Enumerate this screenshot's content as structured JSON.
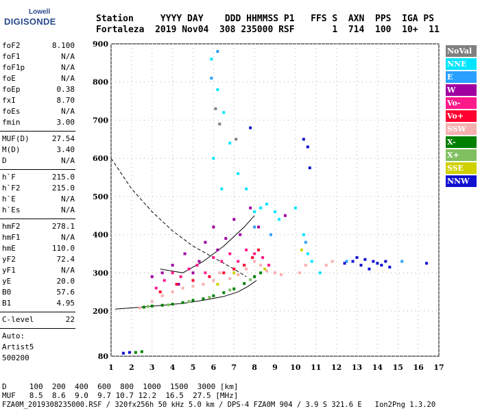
{
  "logo": {
    "top": "Lowell",
    "main": "DIGISONDE"
  },
  "header": {
    "line1": "Station     YYYY DAY    DDD HHMMSS P1   FFS S  AXN  PPS  IGA PS",
    "line2": "Fortaleza  2019 Nov04  308 235000 RSF       1  714  100  10+  11"
  },
  "params": [
    {
      "label": "foF2",
      "value": "8.100"
    },
    {
      "label": "foF1",
      "value": "N/A"
    },
    {
      "label": "foF1p",
      "value": "N/A"
    },
    {
      "label": "foE",
      "value": "N/A"
    },
    {
      "label": "foEp",
      "value": "0.38"
    },
    {
      "label": "fxI",
      "value": "8.70"
    },
    {
      "label": "foEs",
      "value": "N/A"
    },
    {
      "label": "fmin",
      "value": "3.00"
    },
    {
      "label": "MUF(D)",
      "value": "27.54"
    },
    {
      "label": "M(D)",
      "value": "3.40"
    },
    {
      "label": "D",
      "value": "N/A"
    },
    {
      "label": "h`F",
      "value": "215.0"
    },
    {
      "label": "h`F2",
      "value": "215.0"
    },
    {
      "label": "h`E",
      "value": "N/A"
    },
    {
      "label": "h`Es",
      "value": "N/A"
    },
    {
      "label": "hmF2",
      "value": "278.1"
    },
    {
      "label": "hmF1",
      "value": "N/A"
    },
    {
      "label": "hmE",
      "value": "110.0"
    },
    {
      "label": "yF2",
      "value": "72.4"
    },
    {
      "label": "yF1",
      "value": "N/A"
    },
    {
      "label": "yE",
      "value": "20.0"
    },
    {
      "label": "B0",
      "value": "57.6"
    },
    {
      "label": "B1",
      "value": "4.95"
    },
    {
      "label": "C-level",
      "value": "22"
    }
  ],
  "autoscale": {
    "line1": "Auto:",
    "line2": "Artist5",
    "line3": "500200"
  },
  "legend": [
    {
      "label": "NoVal",
      "color": "#808080"
    },
    {
      "label": "NNE",
      "color": "#00e5ff"
    },
    {
      "label": "E",
      "color": "#2aa0ff"
    },
    {
      "label": "W",
      "color": "#a000a0"
    },
    {
      "label": "Vo-",
      "color": "#ff1a8c"
    },
    {
      "label": "Vo+",
      "color": "#ff0030"
    },
    {
      "label": "SSW",
      "color": "#f7b0b0"
    },
    {
      "label": "X-",
      "color": "#008000"
    },
    {
      "label": "X+",
      "color": "#80c060"
    },
    {
      "label": "SSE",
      "color": "#d0d000"
    },
    {
      "label": "NNW",
      "color": "#1010d0"
    }
  ],
  "footer": {
    "d_row": "D     100  200  400  600  800  1000  1500  3000 [km]",
    "muf_row": "MUF   8.5  8.6  9.0  9.7 10.7 12.2  16.5  27.5 [MHz]",
    "file_row": "FZA0M_2019308235000.RSF / 320fx256h 50 kHz 5.0 km / DPS-4 FZA0M 904 / 3.9 S 321.6 E   Ion2Png 1.3.20"
  },
  "chart_data": {
    "type": "scatter",
    "xlim": [
      1,
      17
    ],
    "ylim": [
      80,
      900
    ],
    "xticks": [
      1,
      2,
      3,
      4,
      5,
      6,
      7,
      8,
      9,
      10,
      11,
      12,
      13,
      14,
      15,
      16,
      17
    ],
    "yticks": [
      80,
      200,
      300,
      400,
      500,
      600,
      700,
      800,
      900
    ],
    "series": [
      {
        "name": "SSW",
        "color": "#f7b0b0",
        "points": [
          [
            2.4,
            208
          ],
          [
            3,
            225
          ],
          [
            3.5,
            240
          ],
          [
            4,
            250
          ],
          [
            4.5,
            260
          ],
          [
            5,
            265
          ],
          [
            5.5,
            270
          ],
          [
            6,
            280
          ],
          [
            6.3,
            300
          ],
          [
            6.8,
            285
          ],
          [
            7.2,
            295
          ],
          [
            7.6,
            310
          ],
          [
            8,
            330
          ],
          [
            8.3,
            320
          ],
          [
            8.6,
            305
          ],
          [
            9,
            300
          ],
          [
            9.3,
            295
          ],
          [
            10.2,
            300
          ],
          [
            10.5,
            320
          ],
          [
            11.5,
            320
          ],
          [
            11.8,
            330
          ]
        ]
      },
      {
        "name": "W",
        "color": "#a000a0",
        "points": [
          [
            3,
            290
          ],
          [
            3.5,
            300
          ],
          [
            4,
            320
          ],
          [
            4.3,
            270
          ],
          [
            4.6,
            350
          ],
          [
            5,
            300
          ],
          [
            5.3,
            330
          ],
          [
            5.6,
            380
          ],
          [
            6,
            420
          ],
          [
            6.2,
            360
          ],
          [
            6.6,
            390
          ],
          [
            7,
            440
          ],
          [
            7.3,
            400
          ],
          [
            7.8,
            470
          ],
          [
            8.2,
            420
          ],
          [
            9.5,
            450
          ]
        ]
      },
      {
        "name": "Vo-",
        "color": "#ff1a8c",
        "points": [
          [
            3.2,
            260
          ],
          [
            3.6,
            280
          ],
          [
            4,
            300
          ],
          [
            4.4,
            290
          ],
          [
            4.8,
            310
          ],
          [
            5.2,
            320
          ],
          [
            5.6,
            300
          ],
          [
            6,
            340
          ],
          [
            6.4,
            330
          ],
          [
            6.8,
            350
          ],
          [
            7.2,
            330
          ],
          [
            7.6,
            360
          ],
          [
            8,
            350
          ],
          [
            8.4,
            340
          ],
          [
            8.7,
            320
          ]
        ]
      },
      {
        "name": "Vo+",
        "color": "#ff0030",
        "points": [
          [
            3.4,
            250
          ],
          [
            4.2,
            270
          ],
          [
            5,
            280
          ],
          [
            5.8,
            290
          ],
          [
            6.5,
            300
          ],
          [
            7,
            310
          ],
          [
            7.5,
            320
          ],
          [
            7.9,
            340
          ],
          [
            8.2,
            360
          ]
        ]
      },
      {
        "name": "NNE",
        "color": "#00e5ff",
        "points": [
          [
            5.9,
            860
          ],
          [
            6.2,
            780
          ],
          [
            6.5,
            720
          ],
          [
            6.8,
            640
          ],
          [
            7.2,
            560
          ],
          [
            7.6,
            520
          ],
          [
            8,
            460
          ],
          [
            8.3,
            470
          ],
          [
            8.6,
            480
          ],
          [
            9,
            460
          ],
          [
            9.2,
            440
          ],
          [
            10,
            470
          ],
          [
            10.4,
            400
          ],
          [
            10.6,
            350
          ],
          [
            10.8,
            330
          ],
          [
            11.2,
            300
          ],
          [
            6,
            600
          ],
          [
            6.4,
            520
          ]
        ]
      },
      {
        "name": "E",
        "color": "#2aa0ff",
        "points": [
          [
            5.9,
            810
          ],
          [
            6.2,
            880
          ],
          [
            8,
            420
          ],
          [
            8.8,
            400
          ],
          [
            10.5,
            380
          ],
          [
            12.5,
            330
          ],
          [
            15.2,
            330
          ]
        ]
      },
      {
        "name": "X-",
        "color": "#008000",
        "points": [
          [
            2.6,
            210
          ],
          [
            3,
            213
          ],
          [
            3.5,
            215
          ],
          [
            4,
            218
          ],
          [
            4.5,
            222
          ],
          [
            5,
            228
          ],
          [
            5.5,
            232
          ],
          [
            6,
            240
          ],
          [
            6.5,
            248
          ],
          [
            7,
            258
          ],
          [
            7.5,
            272
          ],
          [
            8,
            290
          ],
          [
            8.3,
            300
          ],
          [
            2.2,
            90
          ],
          [
            2.5,
            92
          ]
        ]
      },
      {
        "name": "X+",
        "color": "#80c060",
        "points": [
          [
            2.8,
            212
          ],
          [
            3.8,
            216
          ],
          [
            4.8,
            225
          ],
          [
            5.8,
            236
          ],
          [
            6.8,
            255
          ],
          [
            7.8,
            282
          ]
        ]
      },
      {
        "name": "SSE",
        "color": "#d0d000",
        "points": [
          [
            6.2,
            270
          ],
          [
            7,
            300
          ],
          [
            8.5,
            310
          ],
          [
            10.3,
            360
          ]
        ]
      },
      {
        "name": "NNW",
        "color": "#1010d0",
        "points": [
          [
            7.8,
            680
          ],
          [
            10.4,
            650
          ],
          [
            10.6,
            630
          ],
          [
            10.7,
            575
          ],
          [
            12.4,
            325
          ],
          [
            12.8,
            330
          ],
          [
            13,
            340
          ],
          [
            13.2,
            320
          ],
          [
            13.4,
            335
          ],
          [
            13.6,
            310
          ],
          [
            13.8,
            330
          ],
          [
            14,
            325
          ],
          [
            14.2,
            320
          ],
          [
            14.4,
            330
          ],
          [
            14.6,
            315
          ],
          [
            16.4,
            325
          ],
          [
            1.6,
            88
          ],
          [
            1.9,
            90
          ]
        ]
      },
      {
        "name": "NoVal",
        "color": "#808080",
        "points": [
          [
            6.1,
            730
          ],
          [
            6.3,
            690
          ],
          [
            7.1,
            650
          ]
        ]
      }
    ],
    "traces": [
      {
        "style": "dashed",
        "points": [
          [
            1,
            600
          ],
          [
            2,
            520
          ],
          [
            3,
            460
          ],
          [
            4,
            410
          ],
          [
            5,
            370
          ],
          [
            6,
            340
          ],
          [
            7,
            310
          ],
          [
            7.6,
            290
          ]
        ]
      },
      {
        "style": "solid",
        "points": [
          [
            1.2,
            205
          ],
          [
            2.5,
            210
          ],
          [
            3.5,
            215
          ],
          [
            4.5,
            220
          ],
          [
            5.5,
            228
          ],
          [
            6.5,
            238
          ],
          [
            7.2,
            250
          ],
          [
            7.7,
            265
          ],
          [
            8.1,
            280
          ]
        ]
      },
      {
        "style": "solid",
        "points": [
          [
            3.4,
            310
          ],
          [
            4.5,
            300
          ],
          [
            5.5,
            330
          ],
          [
            6.5,
            370
          ],
          [
            7.5,
            420
          ],
          [
            8.0,
            450
          ]
        ]
      }
    ]
  }
}
